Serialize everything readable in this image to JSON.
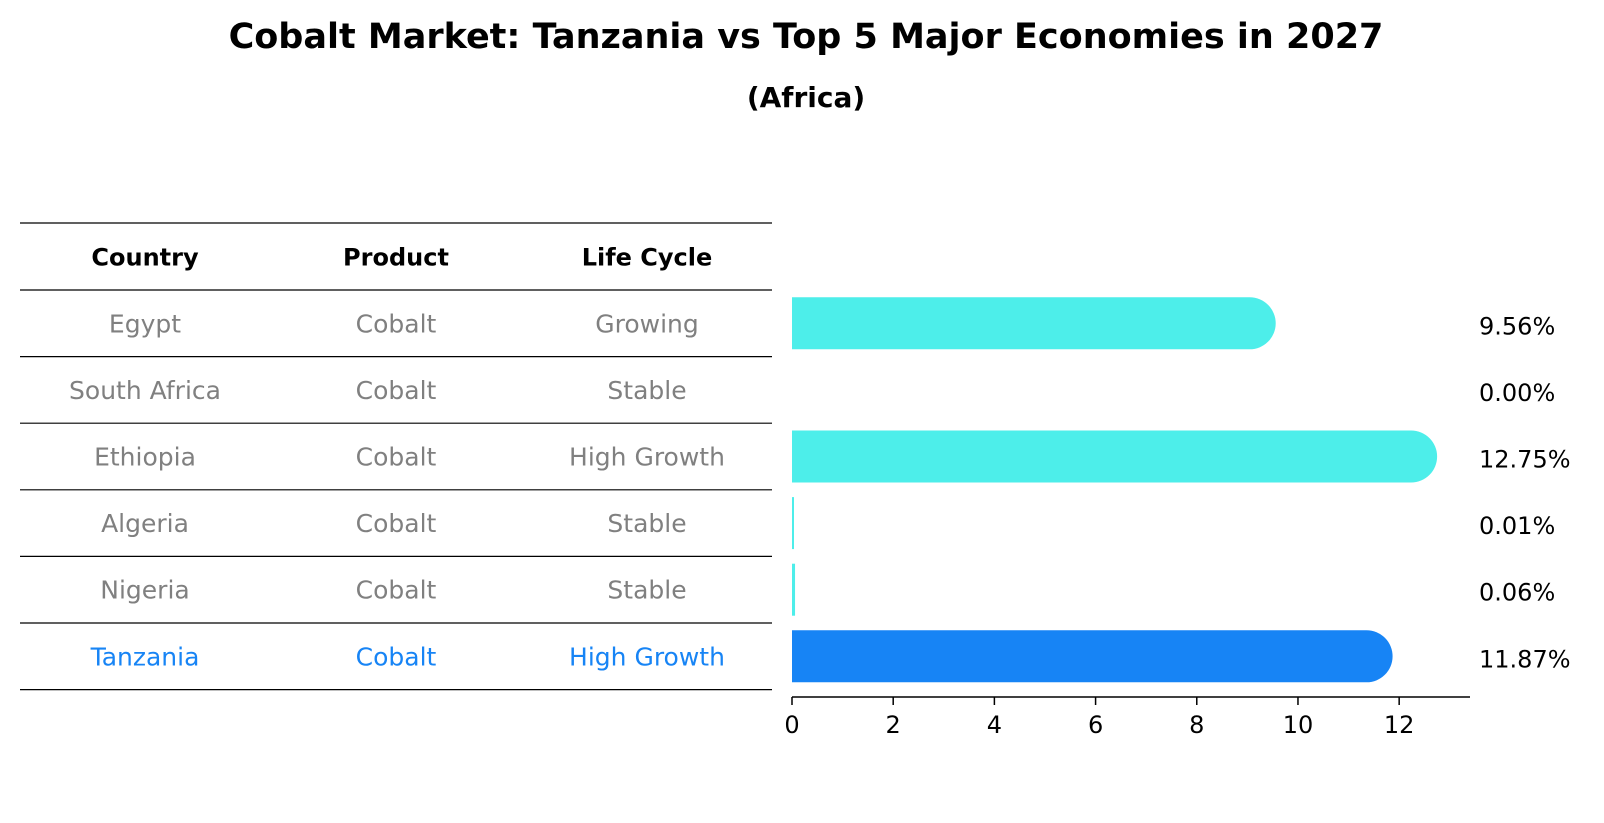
{
  "chart_data": {
    "type": "bar",
    "orientation": "horizontal",
    "title": "Cobalt Market: Tanzania vs Top 5 Major Economies in 2027",
    "subtitle": "(Africa)",
    "table": {
      "headers": [
        "Country",
        "Product",
        "Life Cycle"
      ],
      "rows": [
        [
          "Egypt",
          "Cobalt",
          "Growing"
        ],
        [
          "South Africa",
          "Cobalt",
          "Stable"
        ],
        [
          "Ethiopia",
          "Cobalt",
          "High Growth"
        ],
        [
          "Algeria",
          "Cobalt",
          "Stable"
        ],
        [
          "Nigeria",
          "Cobalt",
          "Stable"
        ],
        [
          "Tanzania",
          "Cobalt",
          "High Growth"
        ]
      ]
    },
    "categories": [
      "Egypt",
      "South Africa",
      "Ethiopia",
      "Algeria",
      "Nigeria",
      "Tanzania"
    ],
    "values": [
      9.56,
      0.0,
      12.75,
      0.01,
      0.06,
      11.87
    ],
    "value_labels": [
      "9.56%",
      "0.00%",
      "12.75%",
      "0.01%",
      "0.06%",
      "11.87%"
    ],
    "highlight": "Tanzania",
    "xticks": [
      0,
      2,
      4,
      6,
      8,
      10,
      12
    ],
    "xlim": [
      0,
      13.4
    ],
    "colors": {
      "bar": "#4deeea",
      "highlight": "#1784f5",
      "text_muted": "#808080",
      "text": "#000000"
    }
  }
}
